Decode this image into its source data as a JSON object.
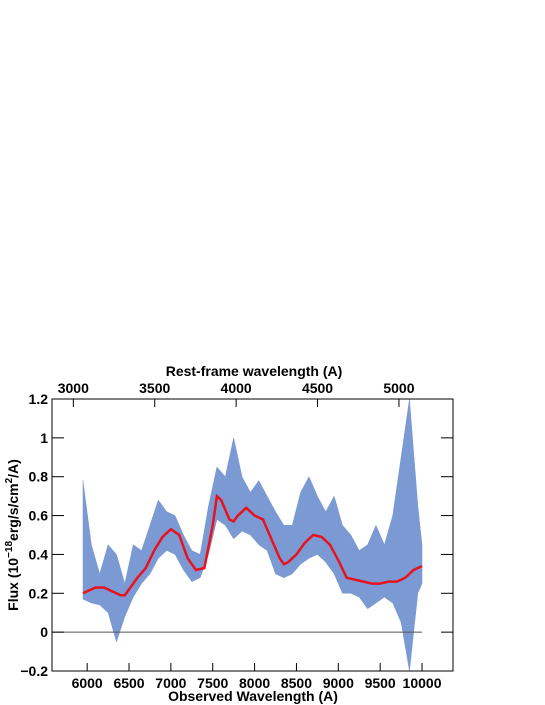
{
  "chart_data": {
    "type": "line",
    "xlabel": "Observed Wavelength (A)",
    "x2label": "Rest-frame wavelength (A)",
    "ylabel": [
      "Flux (10",
      "−18",
      "erg/s/cm",
      "2",
      "/A)"
    ],
    "xlim": [
      5580,
      10370
    ],
    "xticks": [
      6000,
      6500,
      7000,
      7500,
      8000,
      8500,
      9000,
      9500,
      10000
    ],
    "x2lim": [
      2869,
      5332
    ],
    "x2ticks": [
      3000,
      3500,
      4000,
      4500,
      5000
    ],
    "ylim": [
      -0.2,
      1.2
    ],
    "yticks": [
      {
        "value": -0.2,
        "label": "−0.2"
      },
      0,
      0.2,
      0.4,
      0.6,
      0.8,
      1,
      1.2
    ],
    "hline": 0,
    "band": {
      "color": "#7b9ad4",
      "x": [
        5950,
        6050,
        6150,
        6250,
        6350,
        6450,
        6550,
        6650,
        6750,
        6850,
        6950,
        7050,
        7150,
        7250,
        7350,
        7450,
        7550,
        7650,
        7750,
        7850,
        7950,
        8050,
        8150,
        8250,
        8350,
        8450,
        8550,
        8650,
        8750,
        8850,
        8950,
        9050,
        9150,
        9250,
        9350,
        9450,
        9550,
        9650,
        9750,
        9850,
        9950,
        10000
      ],
      "lower": [
        0.17,
        0.15,
        0.14,
        0.1,
        -0.05,
        0.08,
        0.18,
        0.25,
        0.3,
        0.38,
        0.42,
        0.4,
        0.32,
        0.26,
        0.28,
        0.4,
        0.58,
        0.55,
        0.48,
        0.52,
        0.5,
        0.45,
        0.42,
        0.3,
        0.28,
        0.3,
        0.35,
        0.38,
        0.4,
        0.36,
        0.3,
        0.2,
        0.2,
        0.18,
        0.12,
        0.15,
        0.18,
        0.15,
        0.05,
        -0.2,
        0.2,
        0.25
      ],
      "upper": [
        0.78,
        0.45,
        0.3,
        0.45,
        0.4,
        0.25,
        0.45,
        0.42,
        0.55,
        0.68,
        0.62,
        0.6,
        0.5,
        0.42,
        0.4,
        0.65,
        0.85,
        0.8,
        1.0,
        0.8,
        0.72,
        0.78,
        0.7,
        0.62,
        0.55,
        0.55,
        0.72,
        0.8,
        0.7,
        0.62,
        0.7,
        0.55,
        0.5,
        0.42,
        0.45,
        0.55,
        0.45,
        0.6,
        0.9,
        1.2,
        0.65,
        0.45
      ]
    },
    "series": [
      {
        "color": "#e8121c",
        "x": [
          5950,
          6100,
          6200,
          6300,
          6400,
          6450,
          6500,
          6600,
          6700,
          6800,
          6900,
          7000,
          7100,
          7200,
          7300,
          7400,
          7500,
          7550,
          7600,
          7700,
          7750,
          7800,
          7900,
          8000,
          8100,
          8200,
          8300,
          8350,
          8400,
          8500,
          8600,
          8700,
          8800,
          8900,
          9000,
          9100,
          9200,
          9300,
          9400,
          9500,
          9600,
          9700,
          9800,
          9900,
          10000
        ],
        "values": [
          0.2,
          0.23,
          0.23,
          0.21,
          0.19,
          0.19,
          0.22,
          0.28,
          0.33,
          0.42,
          0.49,
          0.53,
          0.5,
          0.38,
          0.32,
          0.33,
          0.55,
          0.7,
          0.68,
          0.58,
          0.57,
          0.6,
          0.64,
          0.6,
          0.58,
          0.48,
          0.38,
          0.35,
          0.36,
          0.4,
          0.46,
          0.5,
          0.49,
          0.45,
          0.37,
          0.28,
          0.27,
          0.26,
          0.25,
          0.25,
          0.26,
          0.26,
          0.28,
          0.32,
          0.34
        ]
      }
    ]
  }
}
